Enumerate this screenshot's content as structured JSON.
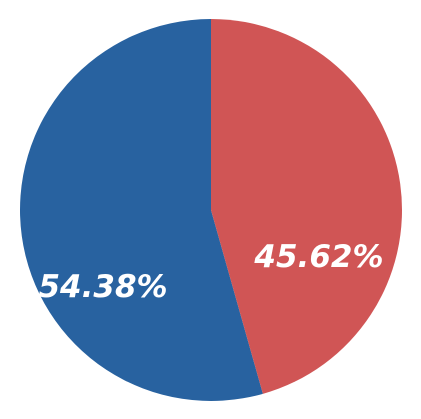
{
  "chart_data": {
    "type": "pie",
    "title": "",
    "slices": [
      {
        "label": "54.38%",
        "value": 54.38,
        "color": "#2862a0"
      },
      {
        "label": "45.62%",
        "value": 45.62,
        "color": "#d05555"
      }
    ],
    "start_angle_deg": 0,
    "direction": "counterclockwise",
    "legend": "none",
    "data_labels": true
  }
}
